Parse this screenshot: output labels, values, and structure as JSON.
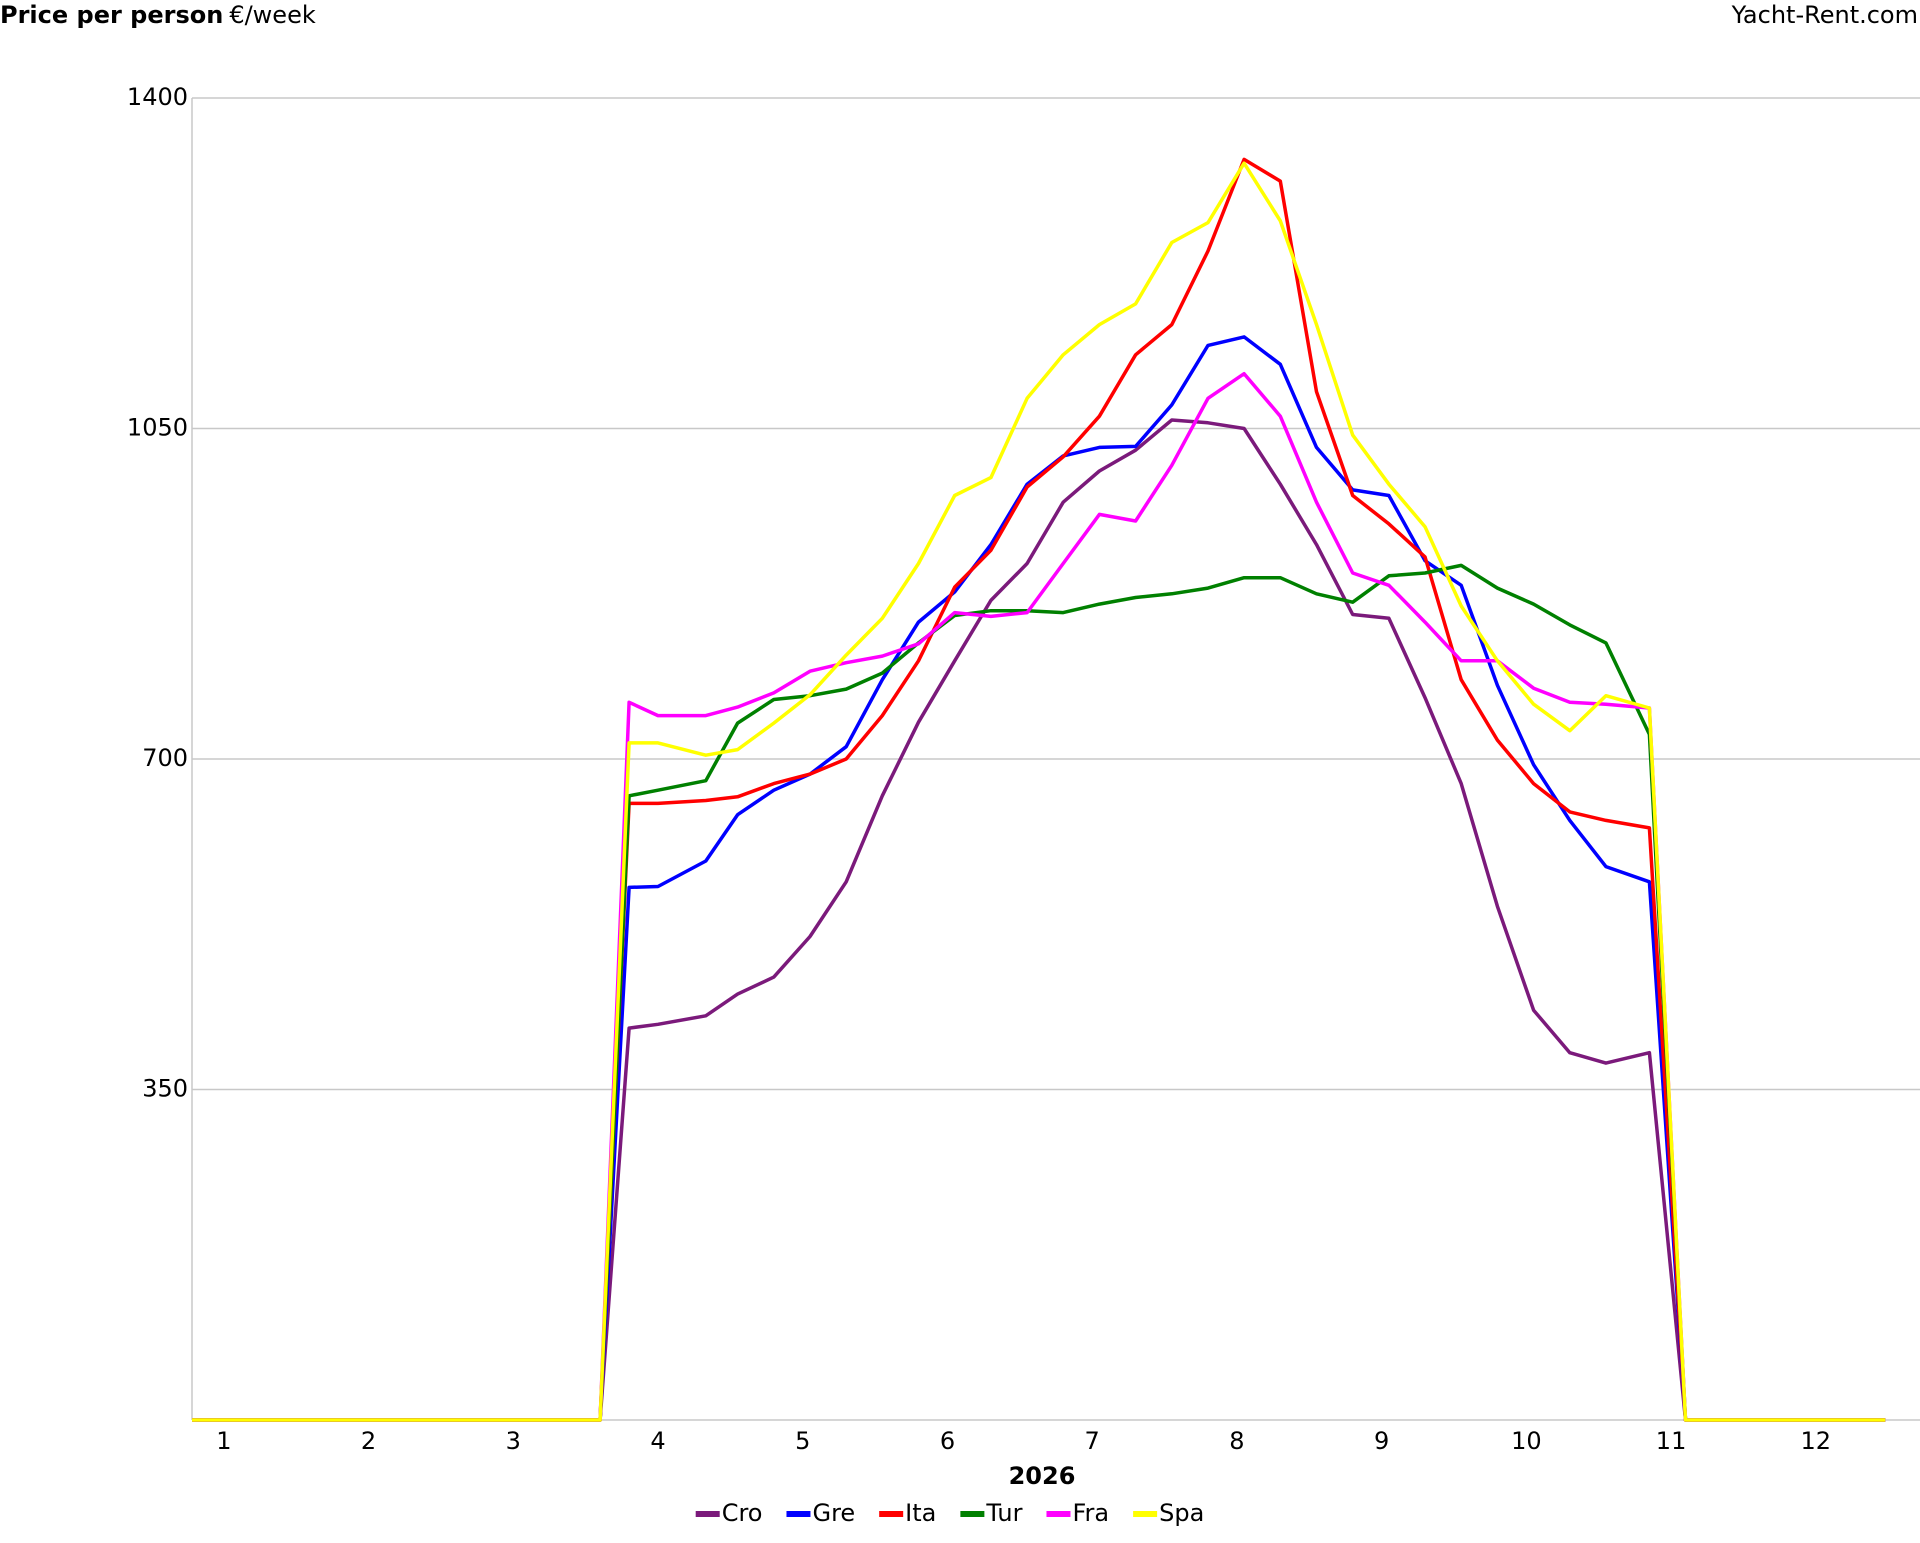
{
  "chart_data": {
    "type": "line",
    "title": "Price per person",
    "title_unit": "€/week",
    "source": "Yacht-Rent.com",
    "x_label": "2026",
    "x": [
      0.78,
      3.6,
      3.8,
      4.0,
      4.33,
      4.55,
      4.8,
      5.05,
      5.3,
      5.55,
      5.8,
      6.05,
      6.3,
      6.55,
      6.8,
      7.05,
      7.3,
      7.55,
      7.8,
      8.05,
      8.3,
      8.55,
      8.8,
      9.05,
      9.3,
      9.55,
      9.8,
      10.05,
      10.3,
      10.55,
      10.85,
      11.1,
      12.48
    ],
    "series": [
      {
        "name": "Cro",
        "color": "#7b1a7b",
        "values": [
          0,
          0,
          415,
          419,
          428,
          451,
          469,
          512,
          570,
          661,
          739,
          804,
          868,
          907,
          972,
          1005,
          1027,
          1059,
          1056,
          1050,
          991,
          927,
          853,
          849,
          765,
          674,
          544,
          434,
          389,
          378,
          389,
          0,
          0
        ]
      },
      {
        "name": "Gre",
        "color": "#0000ff",
        "values": [
          0,
          0,
          564,
          565,
          592,
          641,
          667,
          684,
          713,
          784,
          845,
          877,
          927,
          991,
          1021,
          1030,
          1031,
          1075,
          1138,
          1147,
          1118,
          1030,
          985,
          979,
          910,
          884,
          778,
          694,
          635,
          586,
          570,
          0,
          0
        ]
      },
      {
        "name": "Ita",
        "color": "#ff0000",
        "values": [
          0,
          0,
          653,
          653,
          656,
          660,
          674,
          684,
          700,
          746,
          804,
          882,
          921,
          988,
          1020,
          1063,
          1128,
          1160,
          1238,
          1335,
          1312,
          1089,
          979,
          949,
          914,
          784,
          720,
          674,
          644,
          635,
          627,
          0,
          0
        ]
      },
      {
        "name": "Tur",
        "color": "#008000",
        "values": [
          0,
          0,
          661,
          667,
          677,
          738,
          763,
          767,
          774,
          791,
          823,
          852,
          857,
          857,
          855,
          864,
          871,
          875,
          881,
          892,
          892,
          875,
          866,
          894,
          897,
          905,
          881,
          864,
          842,
          823,
          726,
          0,
          0
        ]
      },
      {
        "name": "Fra",
        "color": "#ff00ff",
        "values": [
          0,
          0,
          760,
          746,
          746,
          755,
          770,
          793,
          802,
          809,
          822,
          855,
          851,
          855,
          907,
          959,
          952,
          1011,
          1082,
          1108,
          1063,
          972,
          897,
          884,
          845,
          804,
          804,
          775,
          760,
          758,
          754,
          0,
          0
        ]
      },
      {
        "name": "Spa",
        "color": "#ffff00",
        "values": [
          0,
          0,
          717,
          717,
          704,
          710,
          738,
          768,
          810,
          849,
          907,
          979,
          998,
          1082,
          1128,
          1160,
          1182,
          1247,
          1268,
          1331,
          1270,
          1160,
          1043,
          991,
          946,
          862,
          804,
          758,
          730,
          767,
          754,
          0,
          0
        ]
      }
    ],
    "xlim": [
      0.78,
      12.72
    ],
    "xticks": [
      1,
      2,
      3,
      4,
      5,
      6,
      7,
      8,
      9,
      10,
      11,
      12
    ],
    "ylim": [
      0,
      1400
    ],
    "yticks": [
      350,
      700,
      1050,
      1400
    ],
    "grid": true
  }
}
